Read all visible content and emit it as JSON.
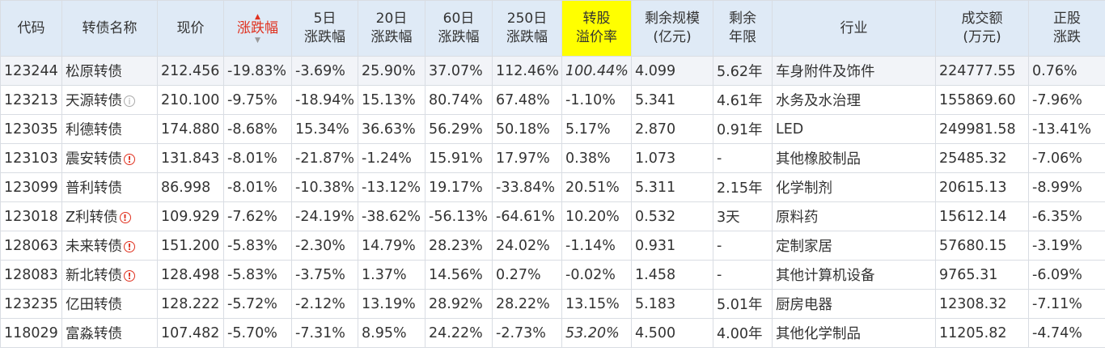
{
  "colors": {
    "red": "#e0301e",
    "green": "#14962d",
    "code_blue": "#2a6ec8",
    "header_bg": "#dfeaf6",
    "highlight": "#ffff00"
  },
  "headers": {
    "code": "代码",
    "name": "转债名称",
    "price": "现价",
    "change": "涨跌幅",
    "chg5_a": "5日",
    "chg5_b": "涨跌幅",
    "chg20_a": "20日",
    "chg20_b": "涨跌幅",
    "chg60_a": "60日",
    "chg60_b": "涨跌幅",
    "chg250_a": "250日",
    "chg250_b": "涨跌幅",
    "premium_a": "转股",
    "premium_b": "溢价率",
    "scale_a": "剩余规模",
    "scale_b": "(亿元)",
    "term_a": "剩余",
    "term_b": "年限",
    "industry": "行业",
    "amount_a": "成交额",
    "amount_b": "(万元)",
    "stock_a": "正股",
    "stock_b": "涨跌"
  },
  "rows": [
    {
      "code": "123244",
      "name": "松原转债",
      "badge": "",
      "price": "212.456",
      "chg": "-19.83%",
      "chg5": "-3.69%",
      "chg20": "25.90%",
      "chg60": "37.07%",
      "chg250": "112.46%",
      "premium": "100.44%",
      "scale": "4.099",
      "term": "5.62年",
      "industry": "车身附件及饰件",
      "amount": "224777.55",
      "stock": "0.76%"
    },
    {
      "code": "123213",
      "name": "天源转债",
      "badge": "i",
      "price": "210.100",
      "chg": "-9.75%",
      "chg5": "-18.94%",
      "chg20": "15.13%",
      "chg60": "80.74%",
      "chg250": "67.48%",
      "premium": "-1.10%",
      "scale": "5.341",
      "term": "4.61年",
      "industry": "水务及水治理",
      "amount": "155869.60",
      "stock": "-7.96%"
    },
    {
      "code": "123035",
      "name": "利德转债",
      "badge": "",
      "price": "174.880",
      "chg": "-8.68%",
      "chg5": "15.34%",
      "chg20": "36.63%",
      "chg60": "56.29%",
      "chg250": "50.18%",
      "premium": "5.17%",
      "scale": "2.870",
      "term": "0.91年",
      "industry": "LED",
      "amount": "249981.58",
      "stock": "-13.41%"
    },
    {
      "code": "123103",
      "name": "震安转债",
      "badge": "!",
      "price": "131.843",
      "chg": "-8.01%",
      "chg5": "-21.87%",
      "chg20": "-1.24%",
      "chg60": "15.91%",
      "chg250": "17.97%",
      "premium": "0.38%",
      "scale": "1.073",
      "term": "-",
      "industry": "其他橡胶制品",
      "amount": "25485.32",
      "stock": "-7.06%"
    },
    {
      "code": "123099",
      "name": "普利转债",
      "badge": "",
      "price": "86.998",
      "chg": "-8.01%",
      "chg5": "-10.38%",
      "chg20": "-13.12%",
      "chg60": "19.17%",
      "chg250": "-33.84%",
      "premium": "20.51%",
      "scale": "5.311",
      "term": "2.15年",
      "industry": "化学制剂",
      "amount": "20615.13",
      "stock": "-8.99%"
    },
    {
      "code": "123018",
      "name": "Z利转债",
      "badge": "!",
      "price": "109.929",
      "chg": "-7.62%",
      "chg5": "-24.19%",
      "chg20": "-38.62%",
      "chg60": "-56.13%",
      "chg250": "-64.61%",
      "premium": "10.20%",
      "scale": "0.532",
      "term": "3天",
      "industry": "原料药",
      "amount": "15612.14",
      "stock": "-6.35%"
    },
    {
      "code": "128063",
      "name": "未来转债",
      "badge": "!",
      "price": "151.200",
      "chg": "-5.83%",
      "chg5": "-2.30%",
      "chg20": "14.79%",
      "chg60": "28.23%",
      "chg250": "24.02%",
      "premium": "-1.14%",
      "scale": "0.931",
      "term": "-",
      "industry": "定制家居",
      "amount": "57680.15",
      "stock": "-3.19%"
    },
    {
      "code": "128083",
      "name": "新北转债",
      "badge": "!",
      "price": "128.498",
      "chg": "-5.83%",
      "chg5": "-3.75%",
      "chg20": "1.37%",
      "chg60": "14.56%",
      "chg250": "0.27%",
      "premium": "-0.02%",
      "scale": "1.458",
      "term": "-",
      "industry": "其他计算机设备",
      "amount": "9765.31",
      "stock": "-6.09%"
    },
    {
      "code": "123235",
      "name": "亿田转债",
      "badge": "",
      "price": "128.222",
      "chg": "-5.72%",
      "chg5": "-2.12%",
      "chg20": "13.19%",
      "chg60": "28.92%",
      "chg250": "28.22%",
      "premium": "13.15%",
      "scale": "5.183",
      "term": "5.01年",
      "industry": "厨房电器",
      "amount": "12308.32",
      "stock": "-7.11%"
    },
    {
      "code": "118029",
      "name": "富淼转债",
      "badge": "",
      "price": "107.482",
      "chg": "-5.70%",
      "chg5": "-7.31%",
      "chg20": "8.95%",
      "chg60": "24.22%",
      "chg250": "-2.73%",
      "premium": "53.20%",
      "scale": "4.500",
      "term": "4.00年",
      "industry": "其他化学制品",
      "amount": "11205.82",
      "stock": "-4.74%"
    }
  ]
}
